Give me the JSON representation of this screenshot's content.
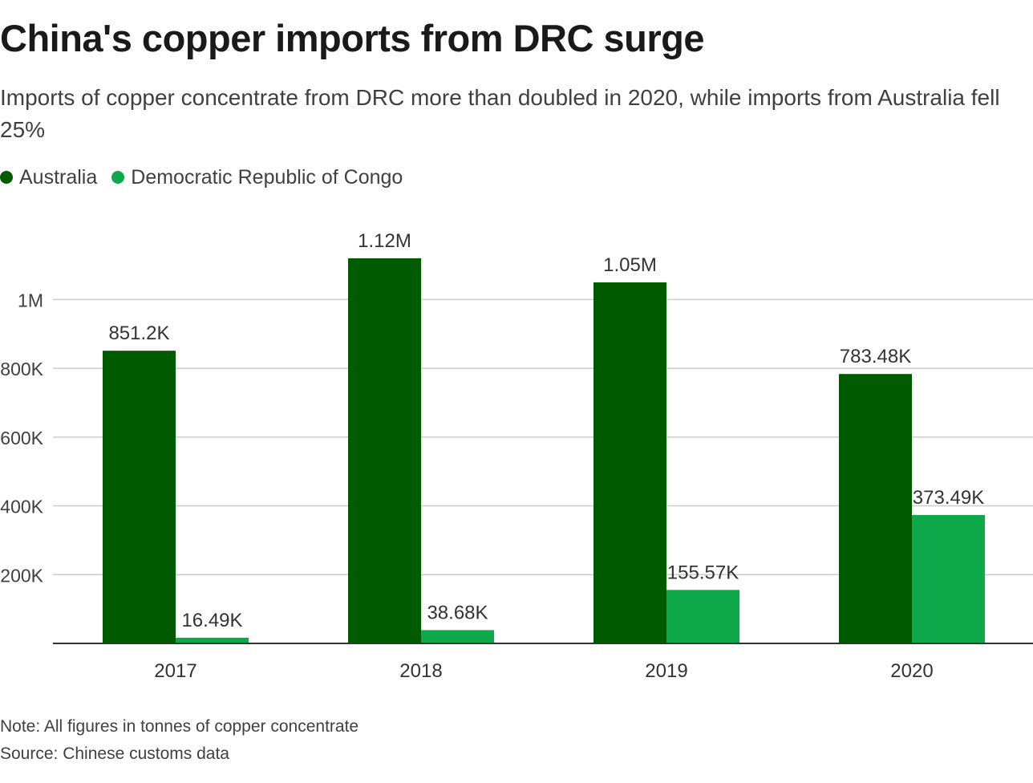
{
  "header": {
    "title": "China's copper imports from DRC surge",
    "subtitle": "Imports of copper concentrate from DRC more than doubled in 2020, while imports from Australia fell 25%"
  },
  "legend": [
    {
      "name": "Australia",
      "color": "#005a00"
    },
    {
      "name": "Democratic Republic of Congo",
      "color": "#0ea94b"
    }
  ],
  "chart_data": {
    "type": "bar",
    "categories": [
      "2017",
      "2018",
      "2019",
      "2020"
    ],
    "series": [
      {
        "name": "Australia",
        "color": "#005a00",
        "values": [
          851200,
          1120000,
          1050000,
          783480
        ],
        "labels": [
          "851.2K",
          "1.12M",
          "1.05M",
          "783.48K"
        ]
      },
      {
        "name": "Democratic Republic of Congo",
        "color": "#0ea94b",
        "values": [
          16490,
          38680,
          155570,
          373490
        ],
        "labels": [
          "16.49K",
          "38.68K",
          "155.57K",
          "373.49K"
        ]
      }
    ],
    "yticks": [
      {
        "value": 200000,
        "label": "200K"
      },
      {
        "value": 400000,
        "label": "400K"
      },
      {
        "value": 600000,
        "label": "600K"
      },
      {
        "value": 800000,
        "label": "800K"
      },
      {
        "value": 1000000,
        "label": "1M"
      }
    ],
    "ylim": [
      0,
      1120000
    ],
    "grid": true,
    "legend_position": "top-left",
    "xlabel": "",
    "ylabel": ""
  },
  "footer": {
    "note": "Note: All figures in tonnes of copper concentrate",
    "source": "Source: Chinese customs data"
  }
}
